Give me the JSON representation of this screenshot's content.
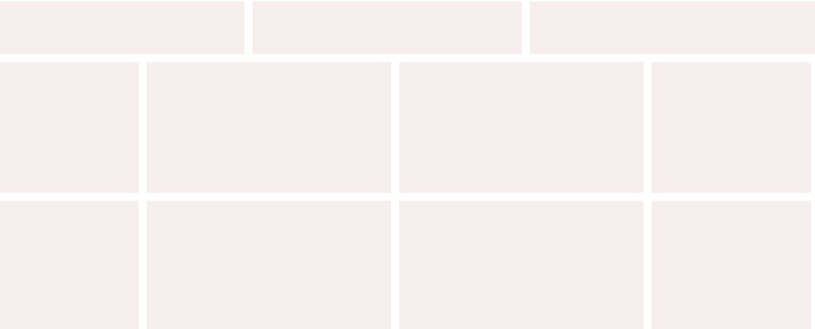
{
  "theme": {
    "page_background": "#ffffff",
    "tile_background": "#f7eeee"
  },
  "rows": {
    "top": [
      {
        "label": ""
      },
      {
        "label": ""
      },
      {
        "label": ""
      }
    ],
    "middle": [
      {
        "label": ""
      },
      {
        "label": ""
      },
      {
        "label": ""
      },
      {
        "label": ""
      }
    ],
    "bottom": [
      {
        "label": ""
      },
      {
        "label": ""
      },
      {
        "label": ""
      },
      {
        "label": ""
      }
    ]
  }
}
